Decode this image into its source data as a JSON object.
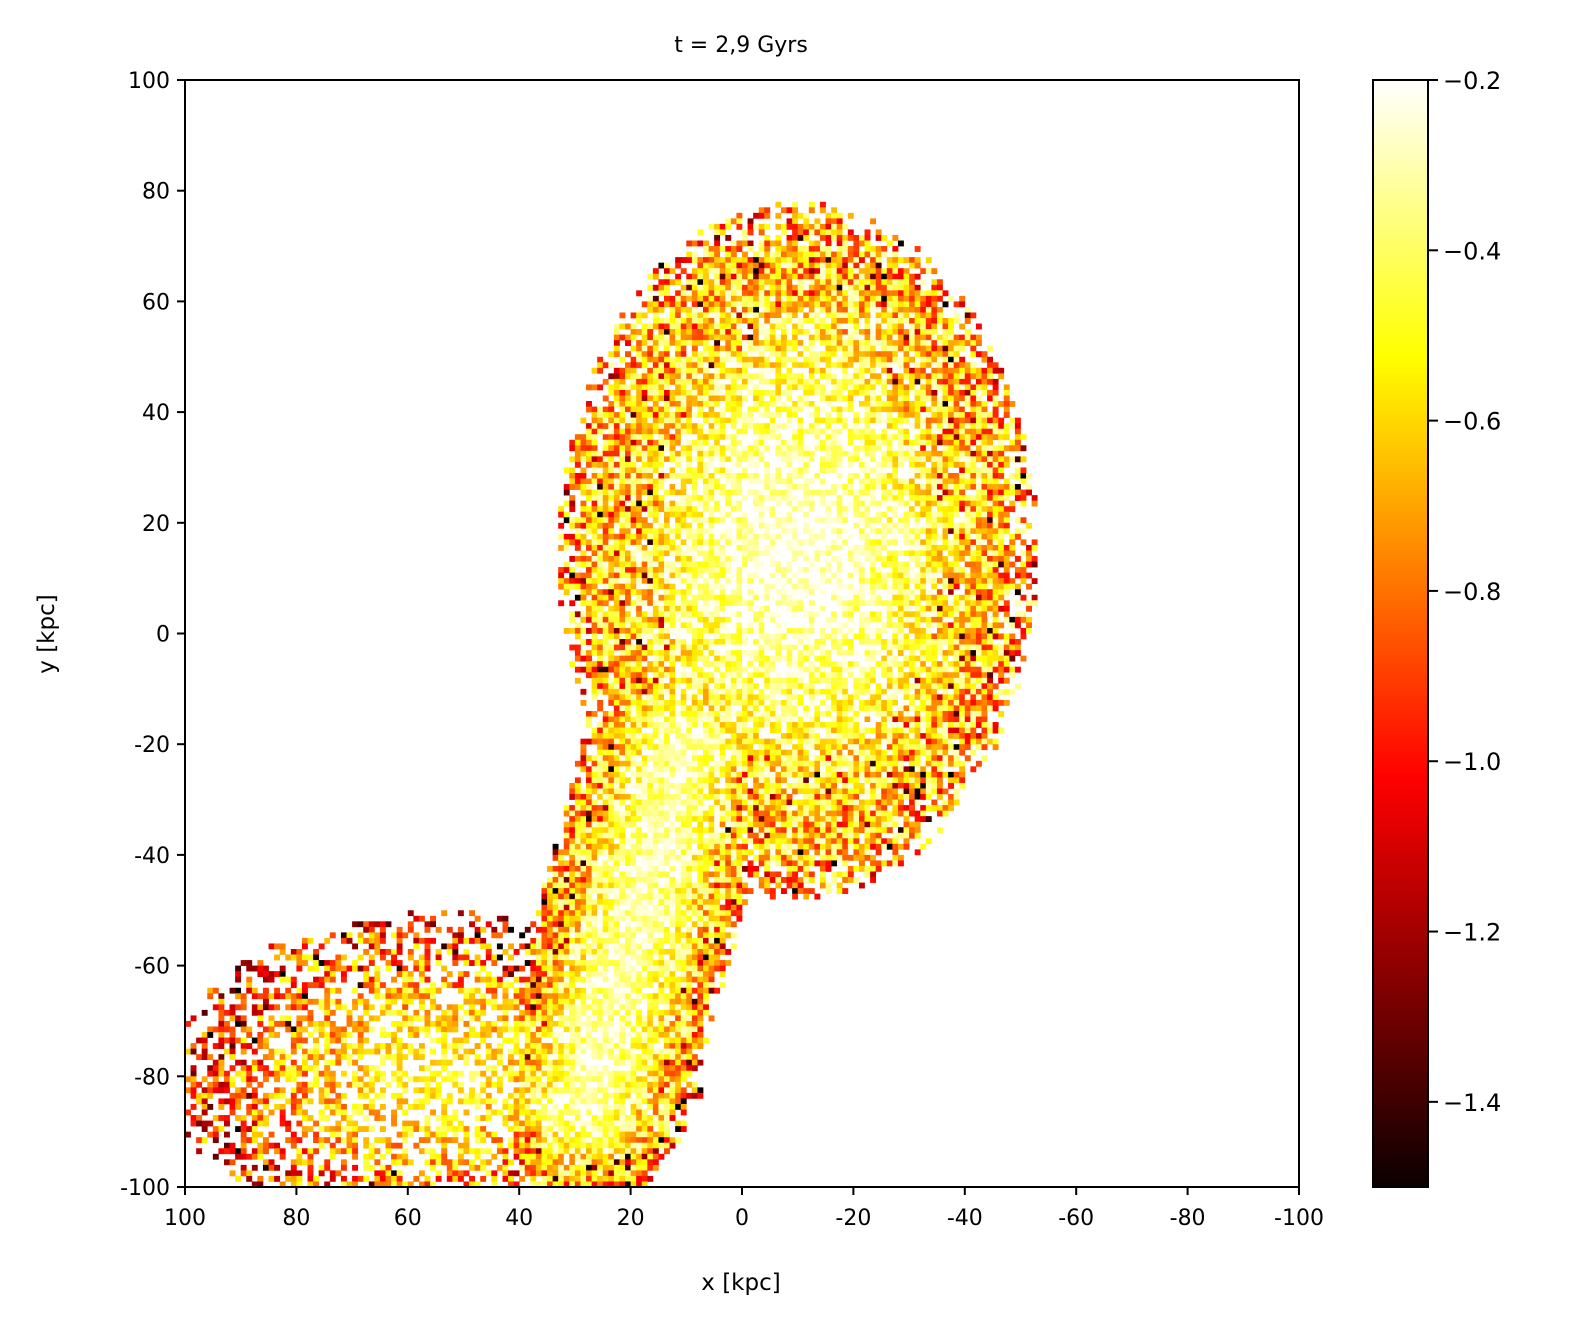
{
  "chart_data": {
    "type": "heatmap",
    "title": "t = 2,9 Gyrs",
    "xlabel": "x [kpc]",
    "ylabel": "y [kpc]",
    "xlim": [
      100,
      -100
    ],
    "ylim": [
      -100,
      100
    ],
    "x_ticks": [
      100,
      80,
      60,
      40,
      20,
      0,
      -20,
      -40,
      -60,
      -80,
      -100
    ],
    "x_tick_labels": [
      "100",
      "80",
      "60",
      "40",
      "20",
      "0",
      "-20",
      "-40",
      "-60",
      "-80",
      "-100"
    ],
    "y_ticks": [
      100,
      80,
      60,
      40,
      20,
      0,
      -20,
      -40,
      -60,
      -80,
      -100
    ],
    "y_tick_labels": [
      "100",
      "80",
      "60",
      "40",
      "20",
      "0",
      "-20",
      "-40",
      "-60",
      "-80",
      "-100"
    ],
    "colormap": "hot",
    "colorbar": {
      "range": [
        -1.5,
        -0.2
      ],
      "ticks": [
        -0.2,
        -0.4,
        -0.6,
        -0.8,
        -1.0,
        -1.2,
        -1.4
      ],
      "tick_labels": [
        "−0.2",
        "−0.4",
        "−0.6",
        "−0.8",
        "−1.0",
        "−1.2",
        "−1.4"
      ]
    },
    "grid": false,
    "structures": [
      {
        "kind": "disk",
        "center": [
          -10,
          15
        ],
        "radius_x": 43,
        "radius_y": 63,
        "core_value": -0.22,
        "edge_value": -0.75
      },
      {
        "kind": "bridge",
        "from": [
          10,
          -20
        ],
        "to": [
          28,
          -85
        ],
        "width": 18,
        "core_value": -0.3,
        "edge_value": -0.8
      },
      {
        "kind": "debris",
        "center": [
          55,
          -80
        ],
        "radius_x": 48,
        "radius_y": 30,
        "core_value": -0.5,
        "edge_value": -1.0
      }
    ]
  }
}
